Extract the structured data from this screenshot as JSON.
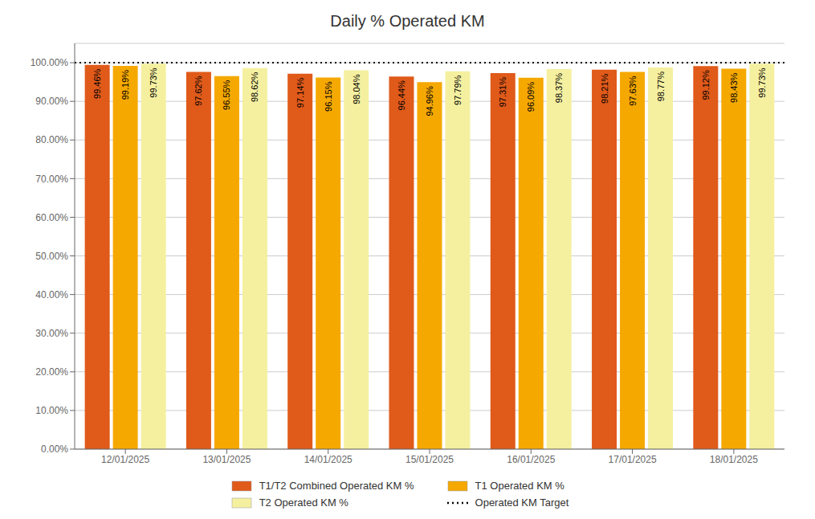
{
  "chart_data": {
    "type": "bar",
    "title": "Daily % Operated KM",
    "categories": [
      "12/01/2025",
      "13/01/2025",
      "14/01/2025",
      "15/01/2025",
      "16/01/2025",
      "17/01/2025",
      "18/01/2025"
    ],
    "series": [
      {
        "name": "T1/T2 Combined Operated KM %",
        "color": "#E05A1A",
        "values": [
          99.46,
          97.62,
          97.14,
          96.44,
          97.31,
          98.21,
          99.12
        ],
        "value_labels": [
          "99.46%",
          "97.62%",
          "97.14%",
          "96.44%",
          "97.31%",
          "98.21%",
          "99.12%"
        ]
      },
      {
        "name": "T1 Operated KM %",
        "color": "#F5A800",
        "values": [
          99.19,
          96.55,
          96.15,
          94.96,
          96.09,
          97.63,
          98.43
        ],
        "value_labels": [
          "99.19%",
          "96.55%",
          "96.15%",
          "94.96%",
          "96.09%",
          "97.63%",
          "98.43%"
        ]
      },
      {
        "name": "T2 Operated KM %",
        "color": "#F5F0A0",
        "values": [
          99.73,
          98.62,
          98.04,
          97.79,
          98.37,
          98.77,
          99.73
        ],
        "value_labels": [
          "99.73%",
          "98.62%",
          "98.04%",
          "97.79%",
          "98.37%",
          "98.77%",
          "99.73%"
        ]
      }
    ],
    "target": {
      "name": "Operated KM Target",
      "value": 100.0,
      "color": "#000000",
      "line_style": "dotted"
    },
    "ylim": [
      0,
      105
    ],
    "yticks": [
      {
        "value": 0,
        "label": "0.00%"
      },
      {
        "value": 10,
        "label": "10.00%"
      },
      {
        "value": 20,
        "label": "20.00%"
      },
      {
        "value": 30,
        "label": "30.00%"
      },
      {
        "value": 40,
        "label": "40.00%"
      },
      {
        "value": 50,
        "label": "50.00%"
      },
      {
        "value": 60,
        "label": "60.00%"
      },
      {
        "value": 70,
        "label": "70.00%"
      },
      {
        "value": 80,
        "label": "80.00%"
      },
      {
        "value": 90,
        "label": "90.00%"
      },
      {
        "value": 100,
        "label": "100.00%"
      }
    ],
    "grid": true,
    "data_labels": true
  }
}
